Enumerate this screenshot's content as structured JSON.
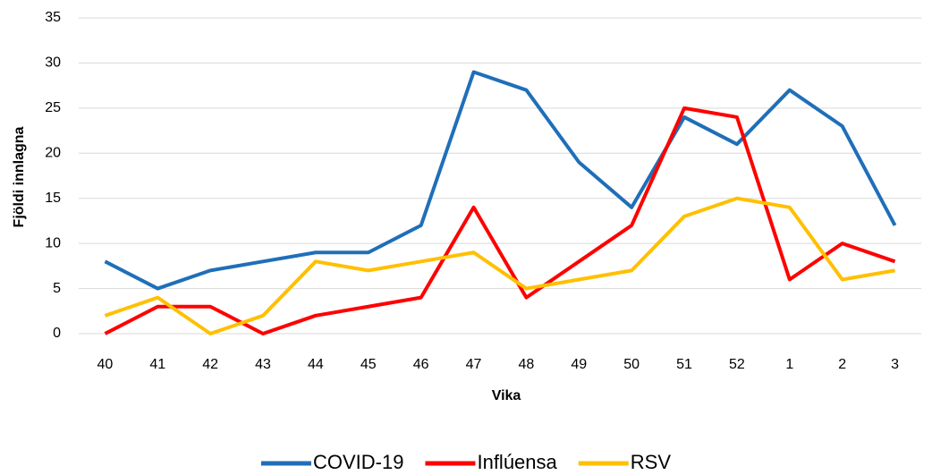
{
  "chart_data": {
    "type": "line",
    "x_label": "Vika",
    "y_label": "Fjöldi innlagna",
    "categories": [
      "40",
      "41",
      "42",
      "43",
      "44",
      "45",
      "46",
      "47",
      "48",
      "49",
      "50",
      "51",
      "52",
      "1",
      "2",
      "3"
    ],
    "series": [
      {
        "name": "COVID-19",
        "color": "#1F6FB8",
        "values": [
          8,
          5,
          7,
          8,
          9,
          9,
          12,
          29,
          27,
          19,
          14,
          24,
          21,
          27,
          23,
          12
        ]
      },
      {
        "name": "Inflúensa",
        "color": "#FF0000",
        "values": [
          0,
          3,
          3,
          0,
          2,
          3,
          4,
          14,
          4,
          8,
          12,
          25,
          24,
          6,
          10,
          8
        ]
      },
      {
        "name": "RSV",
        "color": "#FFC000",
        "values": [
          2,
          4,
          0,
          2,
          8,
          7,
          8,
          9,
          5,
          6,
          7,
          13,
          15,
          14,
          6,
          7
        ]
      }
    ],
    "ylim": [
      0,
      35
    ],
    "yticks": [
      0,
      5,
      10,
      15,
      20,
      25,
      30,
      35
    ],
    "grid": true,
    "legend": "bottom"
  }
}
